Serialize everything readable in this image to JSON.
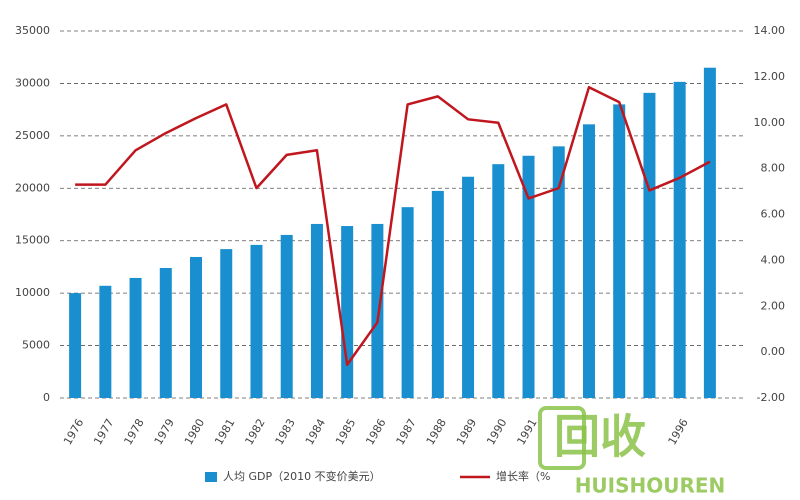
{
  "chart_data": {
    "type": "bar_line",
    "categories": [
      "1976",
      "1977",
      "1978",
      "1979",
      "1980",
      "1981",
      "1982",
      "1983",
      "1984",
      "1985",
      "1986",
      "1987",
      "1988",
      "1989",
      "1990",
      "1991",
      null,
      null,
      null,
      null,
      "1996",
      null
    ],
    "series": [
      {
        "name": "人均 GDP（2010 不变价美元）",
        "color": "#1a8fd0",
        "type": "bar",
        "values": [
          10000,
          10700,
          11450,
          12400,
          13450,
          14200,
          14600,
          15550,
          16600,
          16400,
          16600,
          18200,
          19750,
          21100,
          22300,
          23100,
          24000,
          26100,
          28000,
          29100,
          30150,
          31500
        ]
      },
      {
        "name": "增长率（%",
        "color": "#c0161e",
        "type": "line",
        "axis": "y2",
        "values": [
          7.3,
          7.3,
          8.8,
          9.55,
          10.2,
          10.8,
          7.15,
          8.6,
          8.8,
          -0.55,
          1.3,
          10.8,
          11.15,
          10.15,
          10.0,
          6.7,
          7.15,
          11.55,
          10.9,
          7.05,
          7.6,
          8.3
        ]
      }
    ],
    "ylim": [
      0,
      35000
    ],
    "yticks": [
      0,
      5000,
      10000,
      15000,
      20000,
      25000,
      30000,
      35000
    ],
    "y2lim": [
      -2,
      14
    ],
    "y2ticks": [
      {
        "value": -2,
        "label": "-2.00"
      },
      {
        "value": 0,
        "label": "0.00"
      },
      {
        "value": 2,
        "label": "2.00"
      },
      {
        "value": 4,
        "label": "4.00"
      },
      {
        "value": 6,
        "label": "6.00"
      },
      {
        "value": 8,
        "label": "8.00"
      },
      {
        "value": 10,
        "label": "10.00"
      },
      {
        "value": 12,
        "label": "12.00"
      },
      {
        "value": 14,
        "label": "14.00"
      }
    ],
    "grid": true,
    "watermark": {
      "text": "回收",
      "subtext": "HUISHOUREN"
    }
  }
}
